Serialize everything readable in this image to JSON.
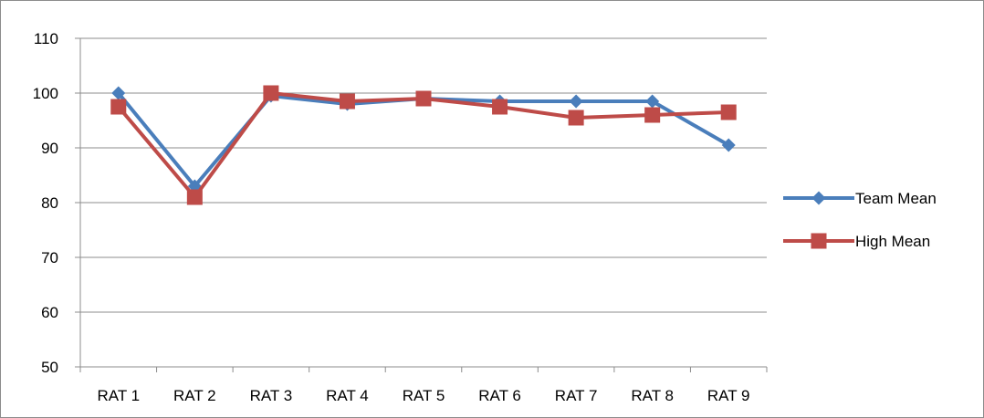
{
  "chart_data": {
    "type": "line",
    "title": "",
    "xlabel": "",
    "ylabel": "",
    "categories": [
      "RAT 1",
      "RAT 2",
      "RAT 3",
      "RAT 4",
      "RAT 5",
      "RAT 6",
      "RAT 7",
      "RAT 8",
      "RAT 9"
    ],
    "y_ticks": [
      "50",
      "60",
      "70",
      "80",
      "90",
      "100",
      "110"
    ],
    "ylim": [
      50,
      110
    ],
    "grid": "horizontal",
    "legend_position": "right",
    "series": [
      {
        "name": "Team Mean",
        "color": "#4a7ebb",
        "marker": "diamond",
        "values": [
          100,
          83,
          99.5,
          98,
          99,
          98.5,
          98.5,
          98.5,
          90.5
        ]
      },
      {
        "name": "High Mean",
        "color": "#be4b48",
        "marker": "square",
        "values": [
          97.5,
          81,
          100,
          98.5,
          99,
          97.5,
          95.5,
          96,
          96.5
        ]
      }
    ]
  }
}
